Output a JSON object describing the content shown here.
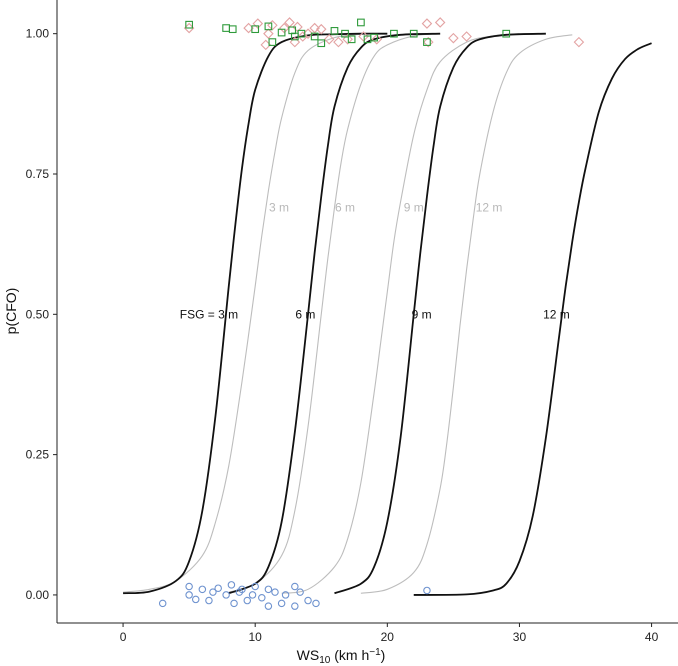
{
  "chart_data": {
    "type": "line",
    "xlabel": "WS",
    "xlabel_sub": "10",
    "xlabel_unit_pre": " (km h",
    "xlabel_unit_sup": "−1",
    "xlabel_unit_post": ")",
    "ylabel": "p(CFO)",
    "xlim": [
      -5,
      42
    ],
    "ylim": [
      -0.05,
      1.06
    ],
    "xticks": [
      0,
      10,
      20,
      30,
      40
    ],
    "yticks": [
      0.0,
      0.25,
      0.5,
      0.75,
      1.0
    ],
    "ytick_labels": [
      "0.00",
      "0.25",
      "0.50",
      "0.75",
      "1.00"
    ],
    "grid": false,
    "colors": {
      "main_curve": "#111111",
      "alt_curve": "#bdbdbd",
      "alt_label": "#b8b8b8",
      "diamond": "#e3a3a3",
      "square": "#2e9a3a",
      "circle": "#6f93cf"
    },
    "series": [
      {
        "name": "FSG = 3 m",
        "style": "main",
        "x": [
          0,
          2,
          4,
          5,
          6,
          7,
          8,
          8.5,
          9,
          9.5,
          10,
          11,
          12,
          14,
          16,
          18,
          20
        ],
        "y": [
          0.003,
          0.006,
          0.025,
          0.06,
          0.15,
          0.32,
          0.55,
          0.66,
          0.76,
          0.84,
          0.9,
          0.96,
          0.985,
          0.997,
          0.999,
          1.0,
          1.0
        ]
      },
      {
        "name": "6 m",
        "style": "main",
        "x": [
          8,
          10,
          11,
          12,
          13,
          14,
          14.5,
          15,
          15.5,
          16,
          17,
          18,
          19,
          21,
          24
        ],
        "y": [
          0.003,
          0.02,
          0.05,
          0.13,
          0.29,
          0.5,
          0.61,
          0.71,
          0.8,
          0.87,
          0.94,
          0.975,
          0.99,
          0.998,
          1.0
        ]
      },
      {
        "name": "9 m",
        "style": "main",
        "x": [
          16,
          18,
          19,
          20,
          21,
          22,
          22.5,
          23,
          23.5,
          24,
          25,
          26,
          27,
          29,
          32
        ],
        "y": [
          0.003,
          0.02,
          0.05,
          0.13,
          0.28,
          0.5,
          0.61,
          0.71,
          0.8,
          0.87,
          0.94,
          0.975,
          0.99,
          0.998,
          1.0
        ]
      },
      {
        "name": "12 m",
        "style": "main",
        "x": [
          22,
          26,
          28,
          29,
          30,
          31,
          32,
          33,
          33.5,
          34,
          34.5,
          35,
          36,
          37,
          38,
          39,
          40
        ],
        "y": [
          0.0,
          0.001,
          0.008,
          0.02,
          0.06,
          0.14,
          0.28,
          0.46,
          0.55,
          0.63,
          0.7,
          0.76,
          0.86,
          0.92,
          0.955,
          0.973,
          0.983
        ]
      },
      {
        "name": "3 m",
        "style": "alt",
        "x": [
          0,
          2,
          4,
          6,
          7,
          8,
          9,
          10,
          10.5,
          11,
          11.5,
          12,
          13,
          14,
          16,
          18
        ],
        "y": [
          0.005,
          0.01,
          0.025,
          0.07,
          0.13,
          0.23,
          0.38,
          0.55,
          0.64,
          0.72,
          0.79,
          0.85,
          0.93,
          0.97,
          0.993,
          0.999
        ]
      },
      {
        "name": "6 m",
        "style": "alt",
        "x": [
          8,
          10,
          12,
          13,
          14,
          15,
          15.5,
          16,
          16.5,
          17,
          18,
          19,
          20,
          22,
          24
        ],
        "y": [
          0.005,
          0.02,
          0.07,
          0.15,
          0.3,
          0.5,
          0.6,
          0.69,
          0.77,
          0.83,
          0.91,
          0.96,
          0.98,
          0.996,
          1.0
        ]
      },
      {
        "name": "9 m",
        "style": "alt",
        "x": [
          12,
          14,
          16,
          17,
          18,
          19,
          19.5,
          20,
          20.5,
          21,
          22,
          23,
          24,
          26,
          28,
          30
        ],
        "y": [
          0.003,
          0.01,
          0.05,
          0.1,
          0.2,
          0.36,
          0.45,
          0.54,
          0.63,
          0.7,
          0.82,
          0.9,
          0.95,
          0.985,
          0.996,
          1.0
        ]
      },
      {
        "name": "12 m",
        "style": "alt",
        "x": [
          18,
          20,
          22,
          23,
          24,
          24.5,
          25,
          25.5,
          26,
          26.5,
          27,
          28,
          29,
          30,
          32,
          34
        ],
        "y": [
          0.003,
          0.01,
          0.04,
          0.09,
          0.19,
          0.27,
          0.37,
          0.48,
          0.58,
          0.67,
          0.75,
          0.86,
          0.93,
          0.965,
          0.99,
          0.998
        ]
      }
    ],
    "curve_labels": [
      {
        "text": "FSG = 3 m",
        "style": "main",
        "x": 6.5,
        "y": 0.5
      },
      {
        "text": "6 m",
        "style": "main",
        "x": 13.8,
        "y": 0.5
      },
      {
        "text": "9 m",
        "style": "main",
        "x": 22.6,
        "y": 0.5
      },
      {
        "text": "12 m",
        "style": "main",
        "x": 32.8,
        "y": 0.5
      },
      {
        "text": "3 m",
        "style": "alt",
        "x": 11.8,
        "y": 0.69
      },
      {
        "text": "6 m",
        "style": "alt",
        "x": 16.8,
        "y": 0.69
      },
      {
        "text": "9 m",
        "style": "alt",
        "x": 22.0,
        "y": 0.69
      },
      {
        "text": "12 m",
        "style": "alt",
        "x": 27.7,
        "y": 0.69
      }
    ],
    "points": {
      "diamond": [
        {
          "x": 5,
          "y": 1.01
        },
        {
          "x": 9.5,
          "y": 1.01
        },
        {
          "x": 10.2,
          "y": 1.018
        },
        {
          "x": 11,
          "y": 1.0
        },
        {
          "x": 11.3,
          "y": 1.015
        },
        {
          "x": 12.2,
          "y": 1.01
        },
        {
          "x": 12.6,
          "y": 1.02
        },
        {
          "x": 13.2,
          "y": 1.012
        },
        {
          "x": 13.6,
          "y": 0.995
        },
        {
          "x": 14,
          "y": 1.0
        },
        {
          "x": 14.5,
          "y": 1.01
        },
        {
          "x": 15,
          "y": 1.008
        },
        {
          "x": 15.6,
          "y": 0.99
        },
        {
          "x": 16.3,
          "y": 0.985
        },
        {
          "x": 17,
          "y": 0.99
        },
        {
          "x": 18.2,
          "y": 0.995
        },
        {
          "x": 19.2,
          "y": 0.99
        },
        {
          "x": 23,
          "y": 1.018
        },
        {
          "x": 23.1,
          "y": 0.985
        },
        {
          "x": 24,
          "y": 1.02
        },
        {
          "x": 25,
          "y": 0.992
        },
        {
          "x": 26,
          "y": 0.995
        },
        {
          "x": 34.5,
          "y": 0.985
        },
        {
          "x": 13,
          "y": 0.985
        },
        {
          "x": 10.8,
          "y": 0.98
        }
      ],
      "square": [
        {
          "x": 5,
          "y": 1.016
        },
        {
          "x": 7.8,
          "y": 1.01
        },
        {
          "x": 8.3,
          "y": 1.008
        },
        {
          "x": 10,
          "y": 1.008
        },
        {
          "x": 11,
          "y": 1.013
        },
        {
          "x": 11.3,
          "y": 0.985
        },
        {
          "x": 12,
          "y": 1.002
        },
        {
          "x": 12.8,
          "y": 1.006
        },
        {
          "x": 13,
          "y": 0.995
        },
        {
          "x": 13.5,
          "y": 1.0
        },
        {
          "x": 14.5,
          "y": 0.995
        },
        {
          "x": 15,
          "y": 0.983
        },
        {
          "x": 16,
          "y": 1.005
        },
        {
          "x": 16.8,
          "y": 1.0
        },
        {
          "x": 17.3,
          "y": 0.99
        },
        {
          "x": 18,
          "y": 1.02
        },
        {
          "x": 18.5,
          "y": 0.99
        },
        {
          "x": 19,
          "y": 0.993
        },
        {
          "x": 20.5,
          "y": 1.0
        },
        {
          "x": 22,
          "y": 1.0
        },
        {
          "x": 23,
          "y": 0.985
        },
        {
          "x": 29,
          "y": 1.0
        }
      ],
      "circle": [
        {
          "x": 3,
          "y": -0.015
        },
        {
          "x": 5,
          "y": 0.0
        },
        {
          "x": 5,
          "y": 0.015
        },
        {
          "x": 5.5,
          "y": -0.008
        },
        {
          "x": 6,
          "y": 0.01
        },
        {
          "x": 6.5,
          "y": -0.01
        },
        {
          "x": 6.8,
          "y": 0.005
        },
        {
          "x": 7.2,
          "y": 0.012
        },
        {
          "x": 7.8,
          "y": 0.0
        },
        {
          "x": 8.2,
          "y": 0.018
        },
        {
          "x": 8.4,
          "y": -0.015
        },
        {
          "x": 8.8,
          "y": 0.005
        },
        {
          "x": 9,
          "y": 0.01
        },
        {
          "x": 9.4,
          "y": -0.01
        },
        {
          "x": 9.8,
          "y": 0.0
        },
        {
          "x": 10,
          "y": 0.015
        },
        {
          "x": 10.5,
          "y": -0.005
        },
        {
          "x": 11,
          "y": 0.01
        },
        {
          "x": 11,
          "y": -0.02
        },
        {
          "x": 11.5,
          "y": 0.005
        },
        {
          "x": 12,
          "y": -0.015
        },
        {
          "x": 12.3,
          "y": 0.0
        },
        {
          "x": 13,
          "y": 0.015
        },
        {
          "x": 13,
          "y": -0.02
        },
        {
          "x": 13.4,
          "y": 0.005
        },
        {
          "x": 14,
          "y": -0.01
        },
        {
          "x": 14.6,
          "y": -0.015
        },
        {
          "x": 23,
          "y": 0.008
        }
      ]
    }
  }
}
